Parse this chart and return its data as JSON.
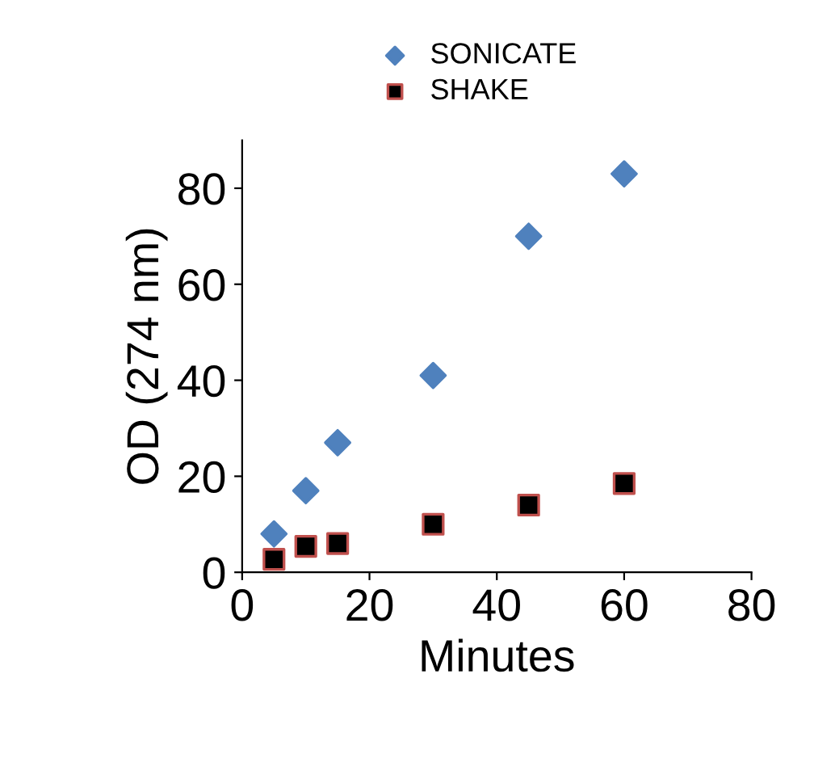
{
  "chart_data": {
    "type": "scatter",
    "xlabel": "Minutes",
    "ylabel": "OD (274 nm)",
    "xlim": [
      0,
      80
    ],
    "xticks": [
      0,
      20,
      40,
      60,
      80
    ],
    "ylim": [
      0,
      90
    ],
    "yticks": [
      0,
      20,
      40,
      60,
      80
    ],
    "grid": false,
    "legend": "top",
    "series": [
      {
        "name": "SONICATE",
        "color": "#4f81bd",
        "marker": "diamond",
        "x": [
          5,
          10,
          15,
          30,
          45,
          60
        ],
        "values": [
          8,
          17,
          27,
          41,
          70,
          83
        ]
      },
      {
        "name": "SHAKE",
        "color": "#000000",
        "marker": "square",
        "x": [
          5,
          10,
          15,
          30,
          45,
          60
        ],
        "values": [
          2.7,
          5.4,
          6,
          10,
          14,
          18.5
        ]
      }
    ]
  }
}
